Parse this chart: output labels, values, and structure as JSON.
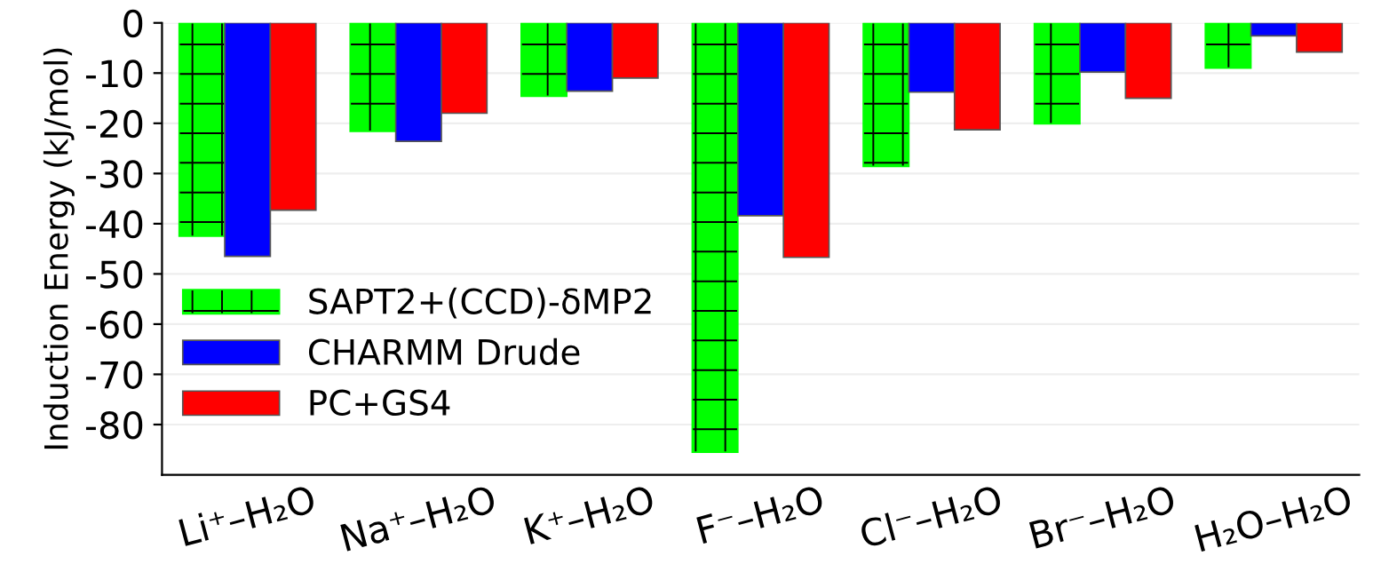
{
  "chart_data": {
    "type": "bar",
    "ylabel": "Induction Energy (kJ/mol)",
    "categories": [
      "Li⁺–H₂O",
      "Na⁺–H₂O",
      "K⁺–H₂O",
      "F⁻–H₂O",
      "Cl⁻–H₂O",
      "Br⁻–H₂O",
      "H₂O–H₂O"
    ],
    "series": [
      {
        "name": "SAPT2+(CCD)-δMP2",
        "color": "#00ff00",
        "values": [
          -42.5,
          -21.6,
          -14.6,
          -85.5,
          -28.6,
          -20.1,
          -9
        ]
      },
      {
        "name": "CHARMM Drude",
        "color": "#0000ff",
        "values": [
          -46.5,
          -23.6,
          -13.6,
          -38.4,
          -13.8,
          -9.8,
          -2.6
        ]
      },
      {
        "name": "PC+GS4",
        "color": "#ff0000",
        "values": [
          -37.3,
          -18,
          -11,
          -46.7,
          -21.3,
          -15,
          -5.8
        ]
      }
    ],
    "ylim": [
      -90,
      0
    ],
    "yticks": [
      -80,
      -70,
      -60,
      -50,
      -40,
      -30,
      -20,
      -10,
      0
    ],
    "grid": "y",
    "legend": "lower left"
  }
}
